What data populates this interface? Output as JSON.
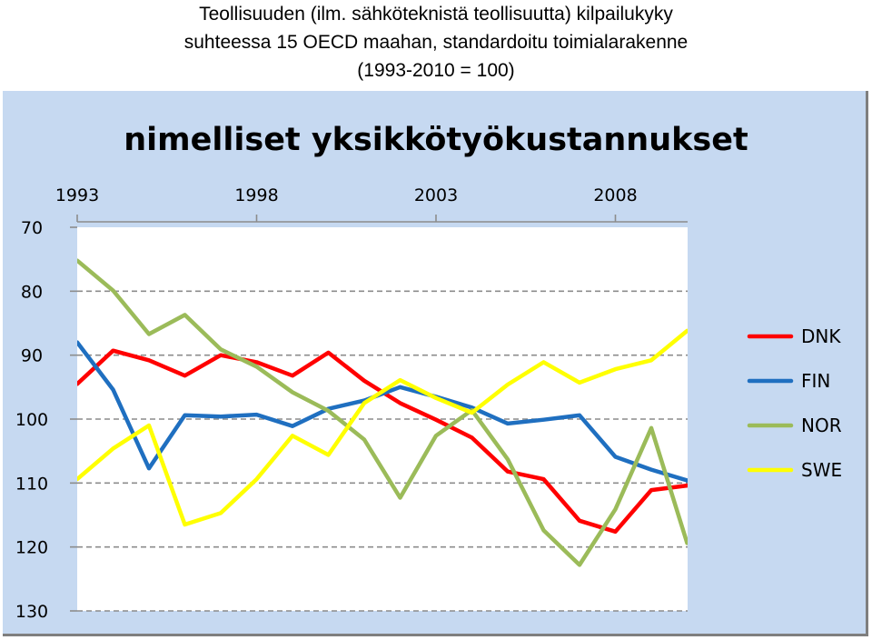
{
  "header": {
    "line1": "Teollisuuden (ilm. sähköteknistä teollisuutta) kilpailukyky",
    "line2": "suhteessa 15 OECD maahan, standardoitu toimialarakenne",
    "line3": "(1993-2010 = 100)"
  },
  "colors": {
    "panel_bg": "#c6d9f1",
    "plot_bg": "#ffffff",
    "grid": "#8c8c8c"
  },
  "chart_data": {
    "type": "line",
    "title": "nimelliset yksikkötyökustannukset",
    "x": [
      1993,
      1994,
      1995,
      1996,
      1997,
      1998,
      1999,
      2000,
      2001,
      2002,
      2003,
      2004,
      2005,
      2006,
      2007,
      2008,
      2009,
      2010
    ],
    "x_ticks": [
      "1993",
      "1998",
      "2003",
      "2008"
    ],
    "y_ticks": [
      "70",
      "80",
      "90",
      "100",
      "110",
      "120",
      "130"
    ],
    "ylim": [
      70,
      130
    ],
    "y_reversed": true,
    "xlabel": "",
    "ylabel": "",
    "grid": "horizontal dashed",
    "legend_position": "right",
    "series": [
      {
        "name": "DNK",
        "color": "#ff0000",
        "values": [
          94.5,
          89.3,
          90.8,
          93.2,
          90.0,
          91.1,
          93.2,
          89.6,
          94.0,
          97.5,
          100.1,
          102.9,
          108.2,
          109.4,
          115.9,
          117.6,
          111.1,
          110.4
        ]
      },
      {
        "name": "FIN",
        "color": "#1f6fc0",
        "values": [
          88.0,
          95.4,
          107.7,
          99.4,
          99.6,
          99.3,
          101.1,
          98.4,
          97.1,
          95.0,
          96.5,
          98.2,
          100.7,
          100.1,
          99.4,
          105.9,
          107.9,
          109.6
        ]
      },
      {
        "name": "NOR",
        "color": "#9bbb59",
        "values": [
          75.2,
          79.9,
          86.7,
          83.7,
          89.1,
          91.8,
          95.8,
          98.7,
          103.2,
          112.3,
          102.6,
          98.6,
          106.3,
          117.4,
          122.8,
          114.1,
          101.4,
          119.4
        ]
      },
      {
        "name": "SWE",
        "color": "#ffff00",
        "values": [
          109.4,
          104.6,
          101.0,
          116.5,
          114.7,
          109.4,
          102.6,
          105.6,
          97.5,
          93.9,
          96.7,
          99.0,
          94.6,
          91.1,
          94.3,
          92.2,
          90.8,
          86.2
        ]
      }
    ]
  }
}
